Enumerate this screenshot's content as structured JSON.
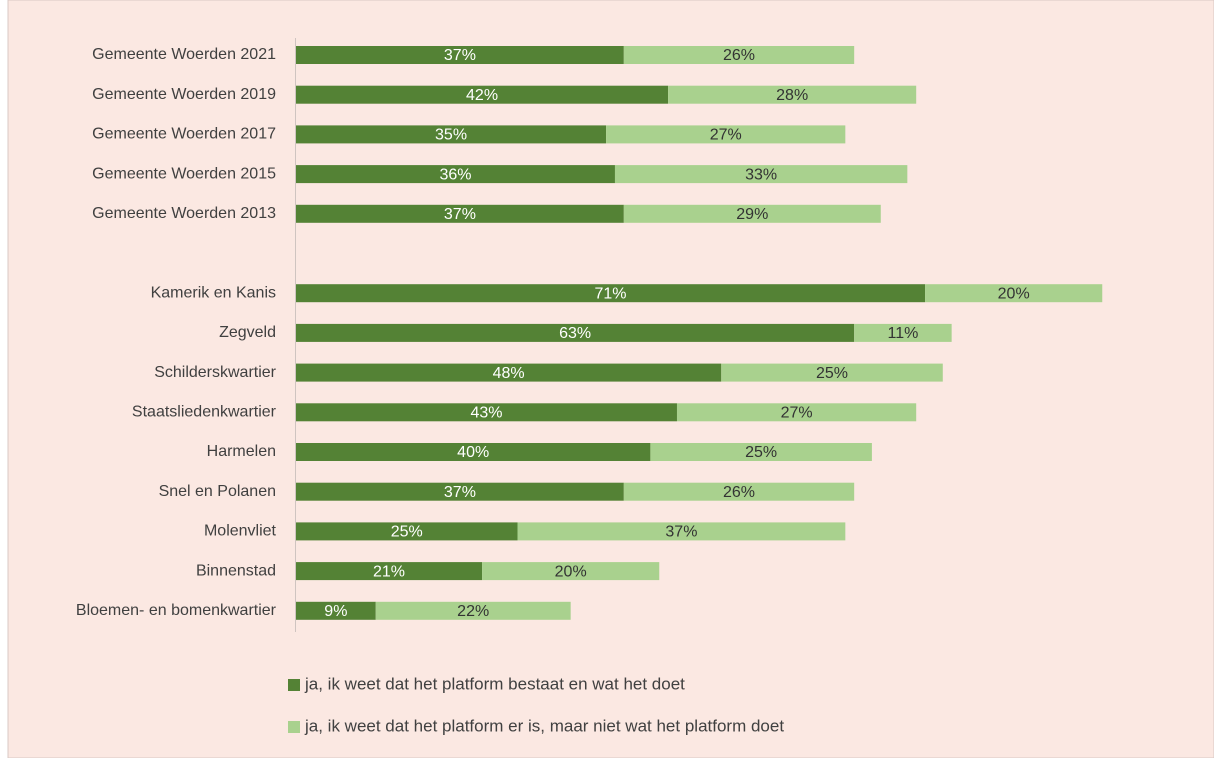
{
  "chart_data": {
    "type": "stacked-barh",
    "categories": [
      "Gemeente Woerden 2021",
      "Gemeente Woerden 2019",
      "Gemeente Woerden 2017",
      "Gemeente Woerden 2015",
      "Gemeente Woerden 2013",
      null,
      "Kamerik en Kanis",
      "Zegveld",
      "Schilderskwartier",
      "Staatsliedenkwartier",
      "Harmelen",
      "Snel en Polanen",
      "Molenvliet",
      "Binnenstad",
      "Bloemen- en bomenkwartier"
    ],
    "series": [
      {
        "name": "ja, ik weet dat het platform bestaat en wat het doet",
        "color": "#548235",
        "label_color": "#ffffff",
        "values": [
          37,
          42,
          35,
          36,
          37,
          null,
          71,
          63,
          48,
          43,
          40,
          37,
          25,
          21,
          9
        ],
        "value_labels": [
          "37%",
          "42%",
          "35%",
          "36%",
          "37%",
          null,
          "71%",
          "63%",
          "48%",
          "43%",
          "40%",
          "37%",
          "25%",
          "21%",
          "9%"
        ]
      },
      {
        "name": "ja, ik weet dat het platform er is, maar niet wat het platform doet",
        "color": "#a9d18e",
        "label_color": "#333333",
        "values": [
          26,
          28,
          27,
          33,
          29,
          null,
          20,
          11,
          25,
          27,
          25,
          26,
          37,
          20,
          22
        ],
        "value_labels": [
          "26%",
          "28%",
          "27%",
          "33%",
          "29%",
          null,
          "20%",
          "11%",
          "25%",
          "27%",
          "25%",
          "26%",
          "37%",
          "20%",
          "22%"
        ]
      }
    ],
    "legend": "bottom"
  }
}
